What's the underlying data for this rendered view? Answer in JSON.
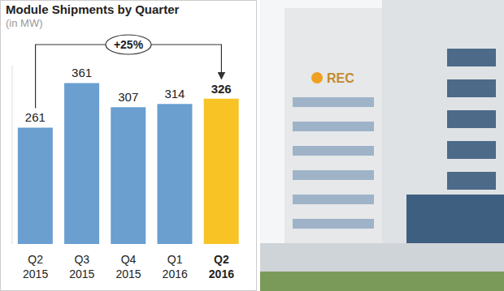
{
  "chart_data": {
    "type": "bar",
    "title": "Module Shipments by Quarter",
    "subtitle": "(in MW)",
    "categories": [
      "Q2 2015",
      "Q3 2015",
      "Q4 2015",
      "Q1 2016",
      "Q2 2016"
    ],
    "values": [
      261,
      361,
      307,
      314,
      326
    ],
    "colors": [
      "#6a9fd0",
      "#6a9fd0",
      "#6a9fd0",
      "#6a9fd0",
      "#f7c325"
    ],
    "ylim": [
      0,
      400
    ],
    "yticks": [],
    "grid": false,
    "data_labels": true,
    "tick_labels": "x",
    "annotation": {
      "text": "+25%",
      "from": "Q2 2015",
      "to": "Q2 2016"
    }
  },
  "photo": {
    "sign_text": "REC"
  }
}
